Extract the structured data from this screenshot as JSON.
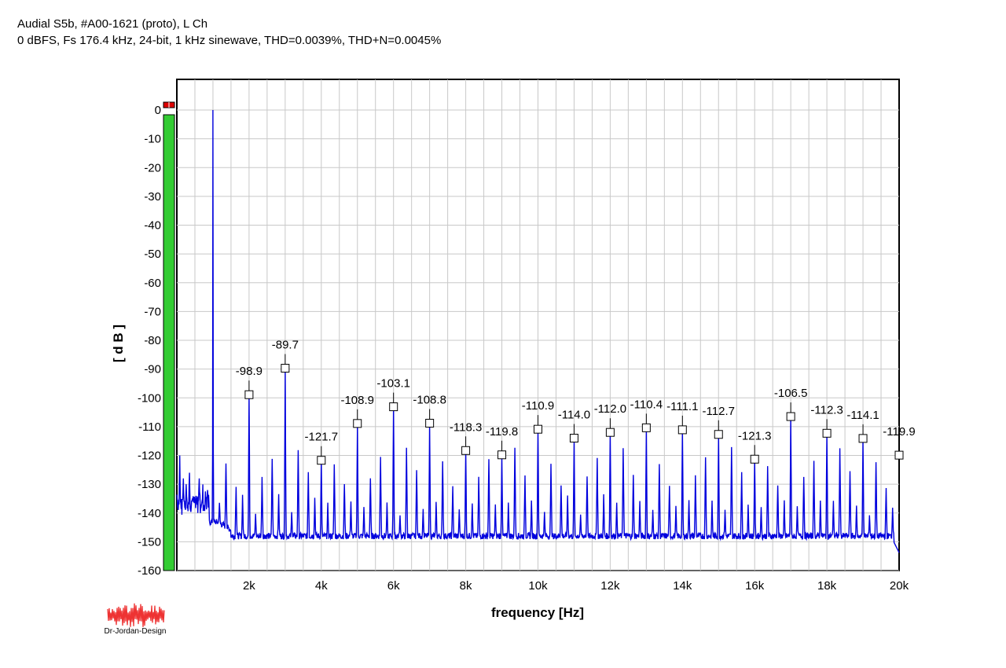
{
  "header": {
    "line1": "Audial S5b, #A00-1621 (proto), L Ch",
    "line2": "0 dBFS, Fs 176.4 kHz, 24-bit, 1 kHz sinewave, THD=0.0039%, THD+N=0.0045%"
  },
  "logo": {
    "text": "Dr-Jordan-Design",
    "color": "#ee3333"
  },
  "chart_data": {
    "type": "line",
    "xlabel": "frequency [Hz]",
    "ylabel": "[ d B ]",
    "xlim": [
      0,
      20000
    ],
    "ylim": [
      -160,
      5
    ],
    "xticks": [
      2000,
      4000,
      6000,
      8000,
      10000,
      12000,
      14000,
      16000,
      18000,
      20000
    ],
    "xtick_labels": [
      "2k",
      "4k",
      "6k",
      "8k",
      "10k",
      "12k",
      "14k",
      "16k",
      "18k",
      "20k"
    ],
    "yticks": [
      0,
      -10,
      -20,
      -30,
      -40,
      -50,
      -60,
      -70,
      -80,
      -90,
      -100,
      -110,
      -120,
      -130,
      -140,
      -150,
      -160
    ],
    "ytick_labels": [
      "0",
      "-10",
      "-20",
      "-30",
      "-40",
      "-50",
      "-60",
      "-70",
      "-80",
      "-90",
      "-100",
      "-110",
      "-120",
      "-130",
      "-140",
      "-150",
      "-160"
    ],
    "grid": true,
    "line_color": "#0000dd",
    "fundamental": {
      "freq": 1000,
      "level": 0
    },
    "noise_floor": -148,
    "harmonics": [
      {
        "freq": 2000,
        "level": -98.9,
        "label": "-98.9"
      },
      {
        "freq": 3000,
        "level": -89.7,
        "label": "-89.7"
      },
      {
        "freq": 4000,
        "level": -121.7,
        "label": "-121.7"
      },
      {
        "freq": 5000,
        "level": -108.9,
        "label": "-108.9"
      },
      {
        "freq": 6000,
        "level": -103.1,
        "label": "-103.1"
      },
      {
        "freq": 7000,
        "level": -108.8,
        "label": "-108.8"
      },
      {
        "freq": 8000,
        "level": -118.3,
        "label": "-118.3"
      },
      {
        "freq": 9000,
        "level": -119.8,
        "label": "-119.8"
      },
      {
        "freq": 10000,
        "level": -110.9,
        "label": "-110.9"
      },
      {
        "freq": 11000,
        "level": -114.0,
        "label": "-114.0"
      },
      {
        "freq": 12000,
        "level": -112.0,
        "label": "-112.0"
      },
      {
        "freq": 13000,
        "level": -110.4,
        "label": "-110.4"
      },
      {
        "freq": 14000,
        "level": -111.1,
        "label": "-111.1"
      },
      {
        "freq": 15000,
        "level": -112.7,
        "label": "-112.7"
      },
      {
        "freq": 16000,
        "level": -121.3,
        "label": "-121.3"
      },
      {
        "freq": 17000,
        "level": -106.5,
        "label": "-106.5"
      },
      {
        "freq": 18000,
        "level": -112.3,
        "label": "-112.3"
      },
      {
        "freq": 19000,
        "level": -114.1,
        "label": "-114.1"
      },
      {
        "freq": 20000,
        "level": -119.9,
        "label": "-119.9"
      }
    ],
    "level_meter": {
      "value_db": 0,
      "bar_color": "#33cc33",
      "clip_color": "#dd0000"
    }
  }
}
